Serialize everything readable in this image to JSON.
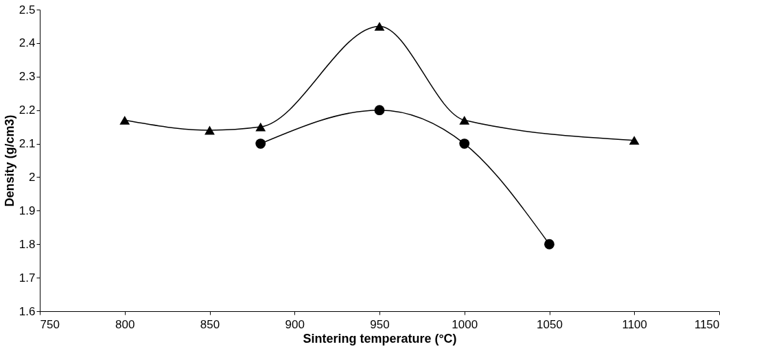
{
  "chart_data": {
    "type": "line",
    "xlabel": "Sintering temperature (°C)",
    "ylabel": "Density (g/cm3)",
    "series": [
      {
        "color": "#000000",
        "marker": "triangle",
        "x": [
          800,
          850,
          880,
          950,
          1000,
          1100
        ],
        "values": [
          2.17,
          2.14,
          2.15,
          2.45,
          2.17,
          2.11
        ]
      },
      {
        "color": "#000000",
        "marker": "circle",
        "x": [
          880,
          950,
          1000,
          1050
        ],
        "values": [
          2.1,
          2.2,
          2.1,
          1.8
        ]
      }
    ],
    "xlim": [
      750,
      1150
    ],
    "xticks": [
      750,
      800,
      850,
      900,
      950,
      1000,
      1050,
      1100,
      1150
    ],
    "ylim": [
      1.6,
      2.5
    ],
    "yticks": [
      1.6,
      1.7,
      1.8,
      1.9,
      2,
      2.1,
      2.2,
      2.3,
      2.4,
      2.5
    ],
    "grid": false,
    "legend": false,
    "line_style": "solid"
  }
}
